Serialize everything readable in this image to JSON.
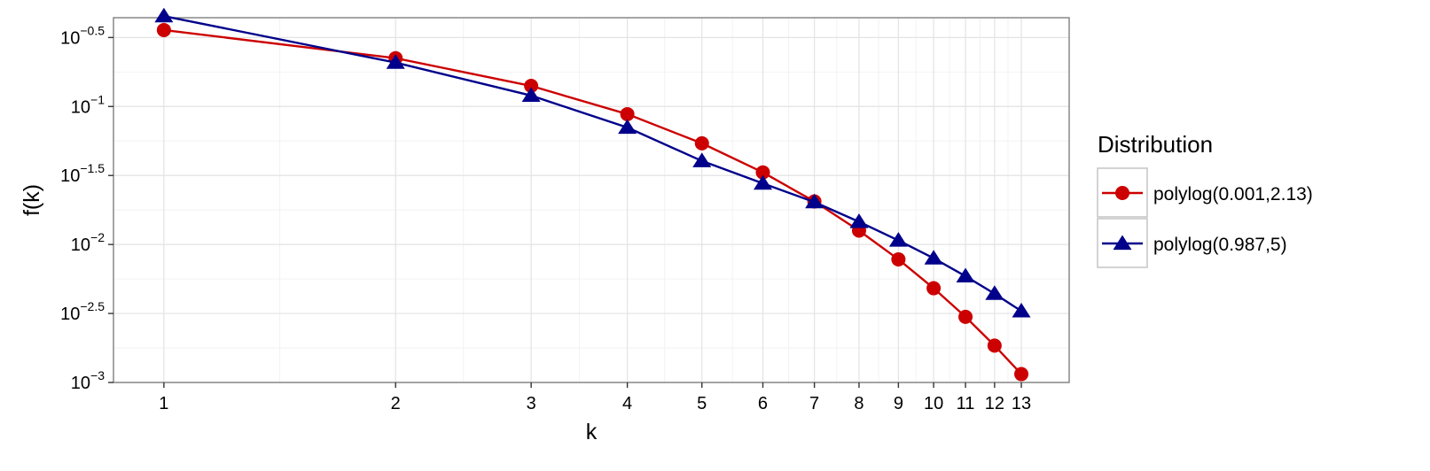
{
  "chart_data": {
    "type": "line",
    "x_scale": "log",
    "y_scale": "log",
    "xlabel": "k",
    "ylabel": "f(k)",
    "x": [
      1,
      2,
      3,
      4,
      5,
      6,
      7,
      8,
      9,
      10,
      11,
      12,
      13
    ],
    "x_ticks": [
      "1",
      "2",
      "3",
      "4",
      "5",
      "6",
      "7",
      "8",
      "9",
      "10",
      "11",
      "12",
      "13"
    ],
    "xlim": [
      0.86,
      15.0
    ],
    "ylim": [
      0.001,
      0.44
    ],
    "y_ticks": [
      {
        "base": "10",
        "exp": "−0.5",
        "value": 0.31623
      },
      {
        "base": "10",
        "exp": "−1",
        "value": 0.1
      },
      {
        "base": "10",
        "exp": "−1.5",
        "value": 0.031623
      },
      {
        "base": "10",
        "exp": "−2",
        "value": 0.01
      },
      {
        "base": "10",
        "exp": "−2.5",
        "value": 0.0031623
      },
      {
        "base": "10",
        "exp": "−3",
        "value": 0.001
      }
    ],
    "grid": true,
    "legend_title": "Distribution",
    "legend_position": "right",
    "series": [
      {
        "name": "polylog(0.001,2.13)",
        "color": "#cc0000",
        "marker": "circle",
        "values": [
          0.358,
          0.224,
          0.141,
          0.088,
          0.0541,
          0.0333,
          0.0205,
          0.0126,
          0.0078,
          0.00482,
          0.00299,
          0.00185,
          0.00115
        ]
      },
      {
        "name": "polylog(0.987,5)",
        "color": "#00008b",
        "marker": "triangle",
        "values": [
          0.452,
          0.208,
          0.12,
          0.0704,
          0.0403,
          0.0277,
          0.0203,
          0.0146,
          0.0107,
          0.00795,
          0.00589,
          0.0044,
          0.00329
        ]
      }
    ]
  }
}
